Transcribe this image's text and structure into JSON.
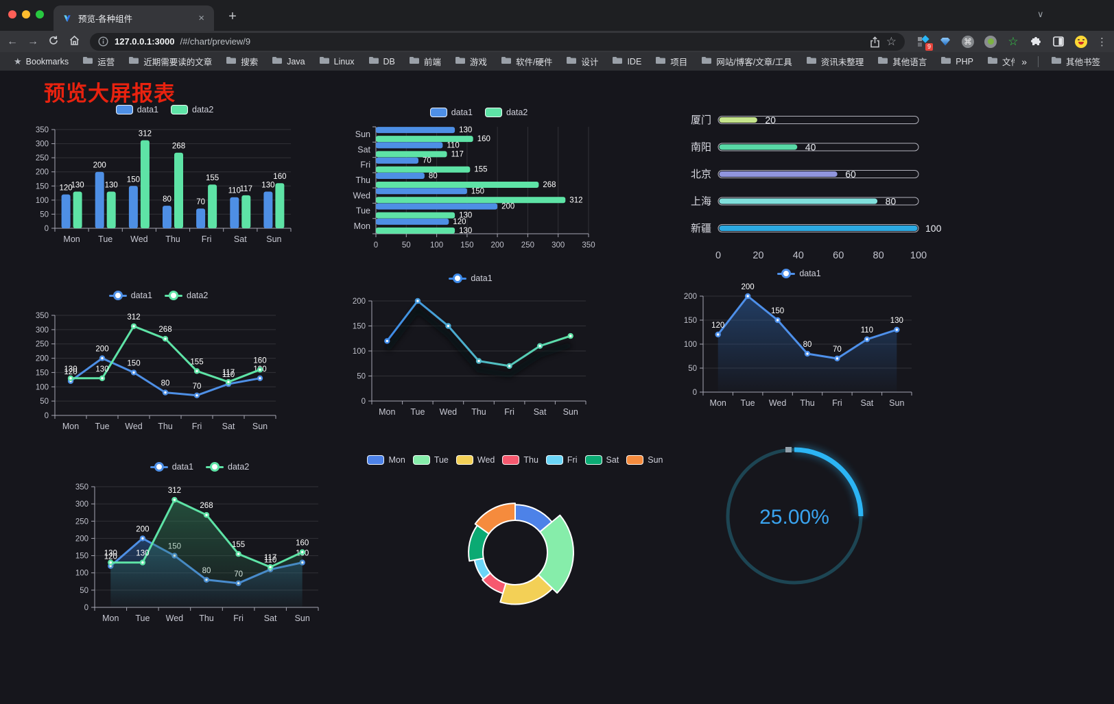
{
  "browser": {
    "tab_title": "预览-各种组件",
    "url_host": "127.0.0.1:3000",
    "url_path": "/#/chart/preview/9",
    "bookmarks_label": "Bookmarks",
    "bookmarks": [
      "运营",
      "近期需要读的文章",
      "搜索",
      "Java",
      "Linux",
      "DB",
      "前端",
      "游戏",
      "软件/硬件",
      "设计",
      "IDE",
      "项目",
      "网站/博客/文章/工具",
      "资讯未整理",
      "其他语言",
      "PHP",
      "文件服务器"
    ],
    "other_bookmarks": "其他书签",
    "extension_badge": "9",
    "traffic_colors": [
      "#ff5f57",
      "#febc2e",
      "#28c840"
    ],
    "glyphs": {
      "close": "×",
      "new_tab": "+",
      "chevron": "∨",
      "back": "←",
      "forward": "→",
      "star": "☆",
      "menu": "⋮",
      "bookmark_star": "★",
      "overflow": "»",
      "cmd": "⌘"
    }
  },
  "page": {
    "title": "预览大屏报表",
    "title_color": "#e8220f",
    "background": "#16161c"
  },
  "chart_data": [
    {
      "id": "grouped-bar",
      "type": "bar",
      "categories": [
        "Mon",
        "Tue",
        "Wed",
        "Thu",
        "Fri",
        "Sat",
        "Sun"
      ],
      "series": [
        {
          "name": "data1",
          "color": "#4e8fe5",
          "values": [
            120,
            200,
            150,
            80,
            70,
            110,
            130
          ]
        },
        {
          "name": "data2",
          "color": "#5ee3a6",
          "values": [
            130,
            130,
            312,
            268,
            155,
            117,
            160
          ]
        }
      ],
      "ylim": [
        0,
        350
      ],
      "ystep": 50,
      "legend_position": "top",
      "grid": true
    },
    {
      "id": "horizontal-bar",
      "type": "hbar",
      "categories": [
        "Mon",
        "Tue",
        "Wed",
        "Thu",
        "Fri",
        "Sat",
        "Sun"
      ],
      "series": [
        {
          "name": "data1",
          "color": "#4e8fe5",
          "values": [
            120,
            200,
            150,
            80,
            70,
            110,
            130
          ]
        },
        {
          "name": "data2",
          "color": "#5ee3a6",
          "values": [
            130,
            130,
            312,
            268,
            155,
            117,
            160
          ]
        }
      ],
      "xlim": [
        0,
        350
      ],
      "xstep": 50,
      "legend_position": "top",
      "grid": true
    },
    {
      "id": "progress-bars",
      "type": "progress",
      "max": 100,
      "rows": [
        {
          "label": "厦门",
          "value": 20,
          "color": "#c5e48b"
        },
        {
          "label": "南阳",
          "value": 40,
          "color": "#58d9a6"
        },
        {
          "label": "北京",
          "value": 60,
          "color": "#9095dd"
        },
        {
          "label": "上海",
          "value": 80,
          "color": "#80e0dc"
        },
        {
          "label": "新疆",
          "value": 100,
          "color": "#2ca9e1"
        }
      ],
      "axis_ticks": [
        0,
        20,
        40,
        60,
        80,
        100
      ]
    },
    {
      "id": "dual-line",
      "type": "line",
      "categories": [
        "Mon",
        "Tue",
        "Wed",
        "Thu",
        "Fri",
        "Sat",
        "Sun"
      ],
      "series": [
        {
          "name": "data1",
          "color": "#4e8fe5",
          "values": [
            120,
            200,
            150,
            80,
            70,
            110,
            130
          ]
        },
        {
          "name": "data2",
          "color": "#5ee3a6",
          "values": [
            130,
            130,
            312,
            268,
            155,
            117,
            160
          ]
        }
      ],
      "ylim": [
        0,
        350
      ],
      "ystep": 50,
      "labels": true,
      "legend_position": "top"
    },
    {
      "id": "gradient-line",
      "type": "line",
      "categories": [
        "Mon",
        "Tue",
        "Wed",
        "Thu",
        "Fri",
        "Sat",
        "Sun"
      ],
      "series": [
        {
          "name": "data1",
          "values": [
            120,
            200,
            150,
            80,
            70,
            110,
            130
          ]
        }
      ],
      "gradient": [
        "#3e8ae8",
        "#5fe3a5"
      ],
      "shadow": true,
      "ylim": [
        0,
        200
      ],
      "ystep": 50,
      "labels": false,
      "legend_position": "top"
    },
    {
      "id": "area-line",
      "type": "line",
      "categories": [
        "Mon",
        "Tue",
        "Wed",
        "Thu",
        "Fri",
        "Sat",
        "Sun"
      ],
      "series": [
        {
          "name": "data1",
          "color": "#4e90ea",
          "values": [
            120,
            200,
            150,
            80,
            70,
            110,
            130
          ],
          "area": true,
          "area_color": "#2b5d9e"
        }
      ],
      "ylim": [
        0,
        200
      ],
      "ystep": 50,
      "labels": true,
      "legend_position": "top"
    },
    {
      "id": "dual-area-line",
      "type": "line",
      "categories": [
        "Mon",
        "Tue",
        "Wed",
        "Thu",
        "Fri",
        "Sat",
        "Sun"
      ],
      "series": [
        {
          "name": "data1",
          "color": "#4e8fe5",
          "values": [
            120,
            200,
            150,
            80,
            70,
            110,
            130
          ],
          "area": true,
          "area_color": "#2b5d9e"
        },
        {
          "name": "data2",
          "color": "#5ee3a6",
          "values": [
            130,
            130,
            312,
            268,
            155,
            117,
            160
          ],
          "area": true,
          "area_color": "#2f7a55"
        }
      ],
      "ylim": [
        0,
        350
      ],
      "ystep": 50,
      "labels": true,
      "legend_position": "top"
    },
    {
      "id": "rose-pie",
      "type": "rose",
      "categories": [
        "Mon",
        "Tue",
        "Wed",
        "Thu",
        "Fri",
        "Sat",
        "Sun"
      ],
      "values": [
        120,
        200,
        150,
        80,
        70,
        110,
        130
      ],
      "colors": [
        "#4d82e8",
        "#86edaa",
        "#f3d056",
        "#f6596f",
        "#6bd5f7",
        "#0baa73",
        "#f58b3d"
      ],
      "legend_position": "top"
    },
    {
      "id": "gauge",
      "type": "gauge",
      "value": 25,
      "max": 100,
      "label": "25.00%",
      "color": "#2cb5f4",
      "track_color": "#1d4553",
      "text_color": "#3aa4f0"
    }
  ]
}
